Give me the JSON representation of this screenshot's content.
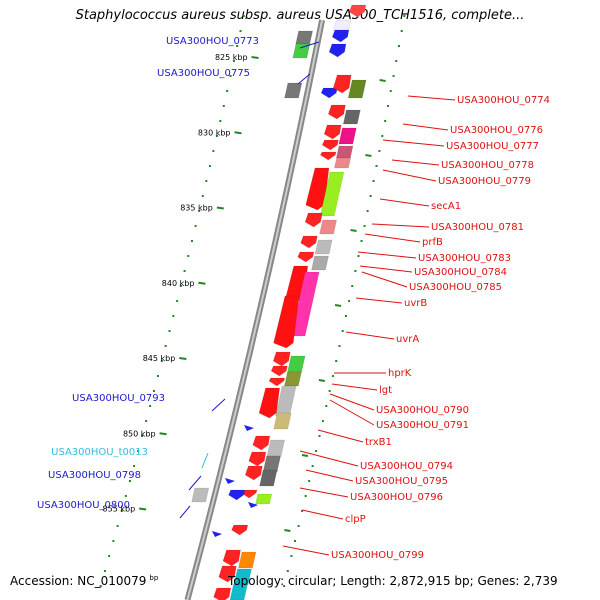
{
  "title": "Staphylococcus aureus subsp. aureus USA300_TCH1516, complete...",
  "footer": {
    "accession": "Accession: NC_010079",
    "unit": "bp",
    "topology": "Topology: circular; Length: 2,872,915 bp; Genes: 2,739"
  },
  "colors": {
    "left_label": "#1a1acc",
    "right_label": "#dd1111",
    "trna_label": "#33bbdd",
    "tick": "#228822",
    "backbone": "#888888"
  },
  "ticks": [
    {
      "label": "825 kbp",
      "kbp": 825
    },
    {
      "label": "830 kbp",
      "kbp": 830
    },
    {
      "label": "835 kbp",
      "kbp": 835
    },
    {
      "label": "840 kbp",
      "kbp": 840
    },
    {
      "label": "845 kbp",
      "kbp": 845
    },
    {
      "label": "850 kbp",
      "kbp": 850
    },
    {
      "label": "855 kbp",
      "kbp": 855
    }
  ],
  "left_labels": [
    {
      "text": "USA300HOU_0773",
      "type": "cds"
    },
    {
      "text": "USA300HOU_0775",
      "type": "cds"
    },
    {
      "text": "USA300HOU_0793",
      "type": "cds"
    },
    {
      "text": "USA300HOU_t0013",
      "type": "trna"
    },
    {
      "text": "USA300HOU_0798",
      "type": "cds"
    },
    {
      "text": "USA300HOU_0800",
      "type": "cds"
    }
  ],
  "right_labels": [
    {
      "text": "USA300HOU_0774"
    },
    {
      "text": "USA300HOU_0776"
    },
    {
      "text": "USA300HOU_0777"
    },
    {
      "text": "USA300HOU_0778"
    },
    {
      "text": "USA300HOU_0779"
    },
    {
      "text": "secA1"
    },
    {
      "text": "USA300HOU_0781"
    },
    {
      "text": "prfB"
    },
    {
      "text": "USA300HOU_0783"
    },
    {
      "text": "USA300HOU_0784"
    },
    {
      "text": "USA300HOU_0785"
    },
    {
      "text": "uvrB"
    },
    {
      "text": "uvrA"
    },
    {
      "text": "hprK"
    },
    {
      "text": "lgt"
    },
    {
      "text": "USA300HOU_0790"
    },
    {
      "text": "USA300HOU_0791"
    },
    {
      "text": "trxB1"
    },
    {
      "text": "USA300HOU_0794"
    },
    {
      "text": "USA300HOU_0795"
    },
    {
      "text": "USA300HOU_0796"
    },
    {
      "text": "clpP"
    },
    {
      "text": "USA300HOU_0799"
    }
  ]
}
